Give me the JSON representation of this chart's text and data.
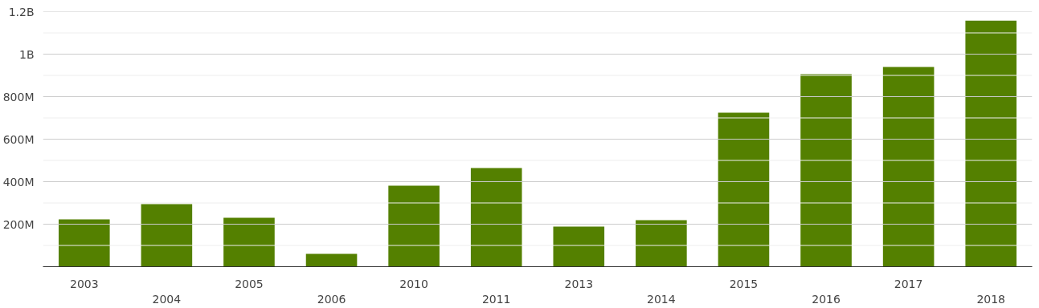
{
  "chart_data": {
    "type": "bar",
    "categories": [
      "2003",
      "2004",
      "2005",
      "2006",
      "2010",
      "2011",
      "2013",
      "2014",
      "2015",
      "2016",
      "2017",
      "2018"
    ],
    "values": [
      223000000,
      294000000,
      230000000,
      60000000,
      381000000,
      464000000,
      189000000,
      219000000,
      725000000,
      906000000,
      940000000,
      1158000000
    ],
    "color": "#548000",
    "ylim": [
      0,
      1200000000
    ],
    "yticks": [
      {
        "value": 100000000,
        "label": null
      },
      {
        "value": 200000000,
        "label": "200M"
      },
      {
        "value": 300000000,
        "label": null
      },
      {
        "value": 400000000,
        "label": "400M"
      },
      {
        "value": 500000000,
        "label": null
      },
      {
        "value": 600000000,
        "label": "600M"
      },
      {
        "value": 700000000,
        "label": null
      },
      {
        "value": 800000000,
        "label": "800M"
      },
      {
        "value": 900000000,
        "label": null
      },
      {
        "value": 1000000000,
        "label": "1B"
      },
      {
        "value": 1100000000,
        "label": null
      },
      {
        "value": 1200000000,
        "label": "1.2B"
      }
    ],
    "grid": "y"
  }
}
